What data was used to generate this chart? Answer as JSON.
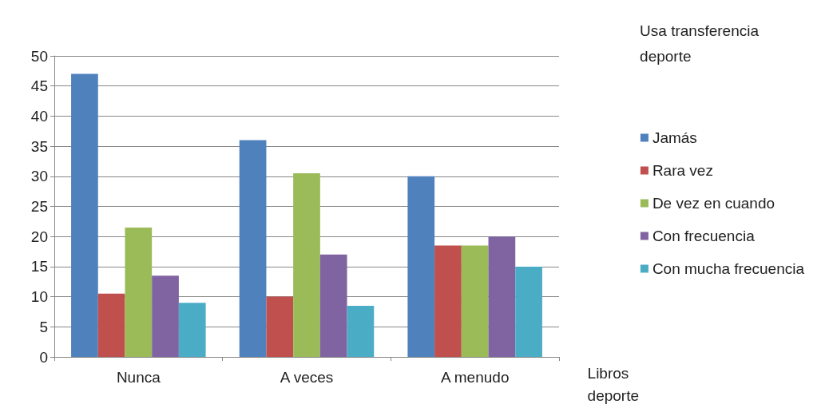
{
  "chart_data": {
    "type": "bar",
    "xlabel": "Libros deporte",
    "legend_title": "Usa transferencia deporte",
    "categories": [
      "Nunca",
      "A veces",
      "A menudo"
    ],
    "series": [
      {
        "name": "Jamás",
        "color": "#4f81bd",
        "values": [
          47,
          36,
          30
        ]
      },
      {
        "name": "Rara vez",
        "color": "#c0504d",
        "values": [
          10.5,
          10,
          18.5
        ]
      },
      {
        "name": "De vez en cuando",
        "color": "#9bbb59",
        "values": [
          21.5,
          30.5,
          18.5
        ]
      },
      {
        "name": "Con frecuencia",
        "color": "#8064a2",
        "values": [
          13.5,
          17,
          20
        ]
      },
      {
        "name": "Con mucha frecuencia",
        "color": "#4bacc6",
        "values": [
          9,
          8.5,
          15
        ]
      }
    ],
    "ylim": [
      0,
      50
    ],
    "yticks": [
      0,
      5,
      10,
      15,
      20,
      25,
      30,
      35,
      40,
      45,
      50
    ],
    "grid": "y",
    "legend": "right"
  }
}
